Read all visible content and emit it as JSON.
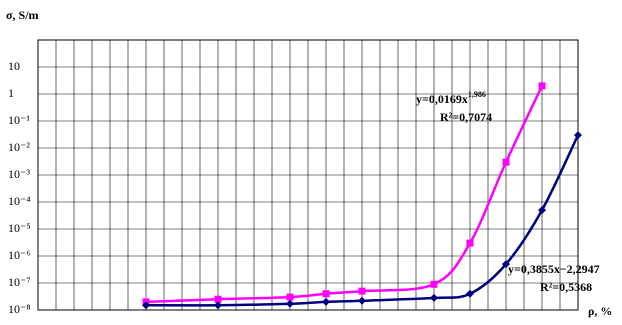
{
  "chart_data": {
    "type": "line",
    "y_label": "σ, S/m",
    "x_label": "ρ, %",
    "log_y": true,
    "grid": true,
    "xtick_labels": false,
    "xlim": [
      0,
      30
    ],
    "xticks": [
      0,
      1,
      2,
      3,
      4,
      5,
      6,
      7,
      8,
      9,
      10,
      11,
      12,
      13,
      14,
      15,
      16,
      17,
      18,
      19,
      20,
      21,
      22,
      23,
      24,
      25,
      26,
      27,
      28,
      29,
      30
    ],
    "ylim": [
      1e-08,
      100
    ],
    "yticks": [
      10,
      1,
      {
        "value": 0.1,
        "label": "10⁻¹"
      },
      {
        "value": 0.01,
        "label": "10⁻²"
      },
      {
        "value": 0.001,
        "label": "10⁻³"
      },
      {
        "value": 0.0001,
        "label": "10⁻⁴"
      },
      {
        "value": 1e-05,
        "label": "10⁻⁵"
      },
      {
        "value": 1e-06,
        "label": "10⁻⁶"
      },
      {
        "value": 1e-07,
        "label": "10⁻⁷"
      },
      {
        "value": 1e-08,
        "label": "10⁻⁸"
      }
    ],
    "series": [
      {
        "color": "#ff00ff",
        "marker": "square",
        "x": [
          6,
          10,
          14,
          16,
          18,
          22,
          24,
          26,
          28
        ],
        "values": [
          2e-08,
          2.5e-08,
          3e-08,
          4e-08,
          5e-08,
          9e-08,
          3e-06,
          0.003,
          2
        ]
      },
      {
        "color": "#000080",
        "marker": "diamond",
        "x": [
          6,
          10,
          14,
          16,
          18,
          22,
          24,
          26,
          28,
          30
        ],
        "values": [
          1.5e-08,
          1.5e-08,
          1.7e-08,
          2e-08,
          2.2e-08,
          2.8e-08,
          4e-08,
          5e-07,
          5e-05,
          0.03
        ]
      }
    ],
    "annotations": [
      {
        "text": "y=0,0169x",
        "sup": "1,986",
        "r2": "R²=0,7074"
      },
      {
        "text": "y=0,3855x−2,2947",
        "r2": "R²=0,5368"
      }
    ]
  }
}
